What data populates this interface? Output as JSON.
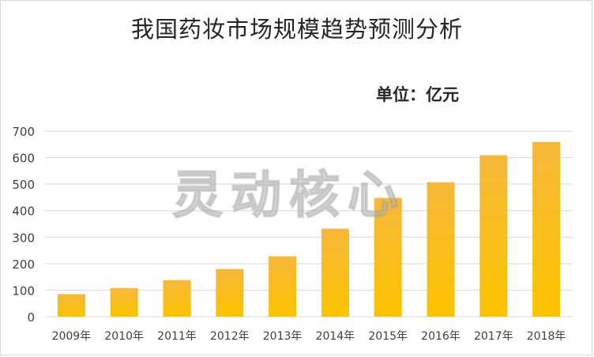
{
  "chart_data": {
    "type": "bar",
    "title": "我国药妆市场规模趋势预测分析",
    "unit_label": "单位：亿元",
    "categories": [
      "2009年",
      "2010年",
      "2011年",
      "2012年",
      "2013年",
      "2014年",
      "2015年",
      "2016年",
      "2017年",
      "2018年"
    ],
    "values": [
      85,
      108,
      138,
      180,
      228,
      332,
      448,
      507,
      609,
      659
    ],
    "ylim": [
      0,
      700
    ],
    "yticks": [
      "0",
      "100",
      "200",
      "300",
      "400",
      "500",
      "600",
      "700"
    ],
    "grid": true,
    "legend": "none",
    "bar_color_top": "#f6b83a",
    "bar_color_bottom": "#fcc300",
    "grid_color": "#d9d9d9"
  },
  "watermark": "灵动核心"
}
